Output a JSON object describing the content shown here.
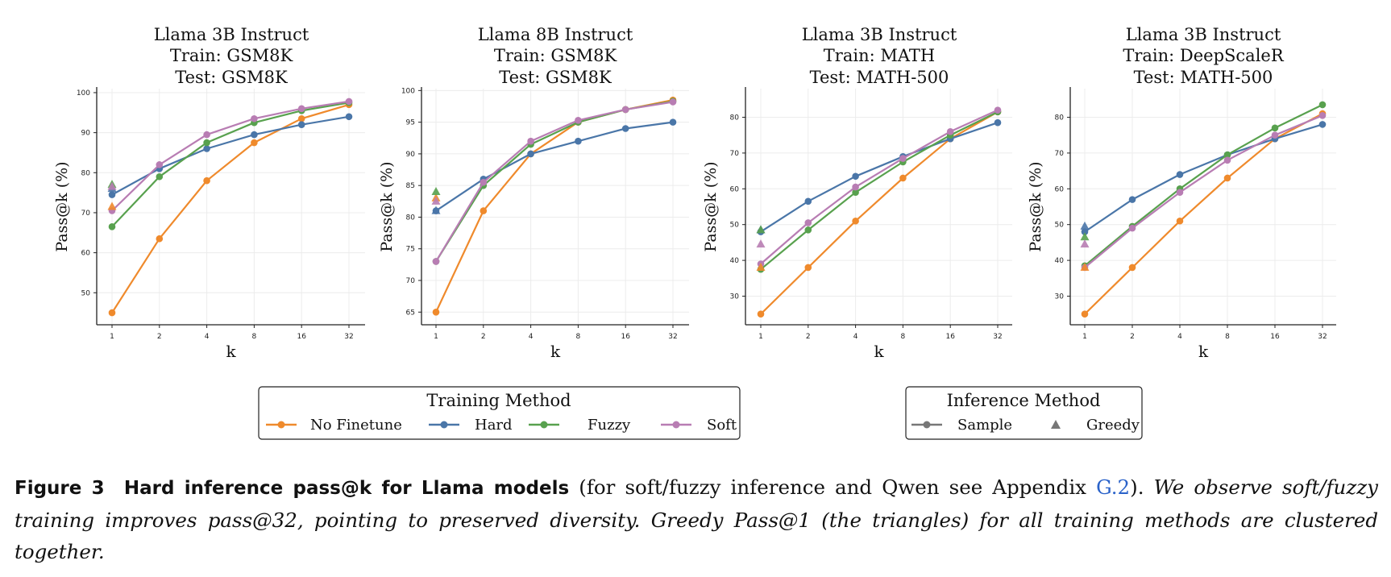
{
  "colors": {
    "No Finetune": "#ef8a2c",
    "Hard": "#4a76a8",
    "Fuzzy": "#58a14e",
    "Soft": "#b87db3"
  },
  "chart_data": [
    {
      "type": "line",
      "title": [
        "Llama 3B Instruct",
        "Train: GSM8K",
        "Test: GSM8K"
      ],
      "xlabel": "k",
      "ylabel": "Pass@k (%)",
      "x": [
        "1",
        "2",
        "4",
        "8",
        "16",
        "32"
      ],
      "ylim": [
        42,
        101
      ],
      "yticks": [
        50,
        60,
        70,
        80,
        90,
        100
      ],
      "series": [
        {
          "name": "No Finetune",
          "values": [
            45.0,
            63.5,
            78.0,
            87.5,
            93.5,
            97.0
          ]
        },
        {
          "name": "Hard",
          "values": [
            74.5,
            81.0,
            86.0,
            89.5,
            92.0,
            94.0
          ]
        },
        {
          "name": "Fuzzy",
          "values": [
            66.5,
            79.0,
            87.5,
            92.5,
            95.5,
            97.5
          ]
        },
        {
          "name": "Soft",
          "values": [
            70.5,
            82.0,
            89.5,
            93.5,
            96.0,
            97.8
          ]
        }
      ],
      "greedy": [
        {
          "name": "No Finetune",
          "value": 71.5
        },
        {
          "name": "Hard",
          "value": 76.0
        },
        {
          "name": "Fuzzy",
          "value": 77.0
        },
        {
          "name": "Soft",
          "value": 76.5
        }
      ]
    },
    {
      "type": "line",
      "title": [
        "Llama 8B Instruct",
        "Train: GSM8K",
        "Test: GSM8K"
      ],
      "xlabel": "k",
      "ylabel": "Pass@k (%)",
      "x": [
        "1",
        "2",
        "4",
        "8",
        "16",
        "32"
      ],
      "ylim": [
        63,
        100.3
      ],
      "yticks": [
        65,
        70,
        75,
        80,
        85,
        90,
        95,
        100
      ],
      "series": [
        {
          "name": "No Finetune",
          "values": [
            65.0,
            81.0,
            90.0,
            95.0,
            97.0,
            98.5
          ]
        },
        {
          "name": "Hard",
          "values": [
            81.0,
            86.0,
            90.0,
            92.0,
            94.0,
            95.0
          ]
        },
        {
          "name": "Fuzzy",
          "values": [
            73.0,
            85.0,
            91.5,
            95.0,
            97.0,
            98.3
          ]
        },
        {
          "name": "Soft",
          "values": [
            73.0,
            85.5,
            92.0,
            95.3,
            97.0,
            98.2
          ]
        }
      ],
      "greedy": [
        {
          "name": "No Finetune",
          "value": 83.0
        },
        {
          "name": "Hard",
          "value": 81.0
        },
        {
          "name": "Fuzzy",
          "value": 84.0
        },
        {
          "name": "Soft",
          "value": 82.5
        }
      ]
    },
    {
      "type": "line",
      "title": [
        "Llama 3B Instruct",
        "Train: MATH",
        "Test: MATH-500"
      ],
      "xlabel": "k",
      "ylabel": "Pass@k (%)",
      "x": [
        "1",
        "2",
        "4",
        "8",
        "16",
        "32"
      ],
      "ylim": [
        22,
        88
      ],
      "yticks": [
        30,
        40,
        50,
        60,
        70,
        80
      ],
      "series": [
        {
          "name": "No Finetune",
          "values": [
            25.0,
            38.0,
            51.0,
            63.0,
            74.0,
            81.5
          ]
        },
        {
          "name": "Hard",
          "values": [
            48.0,
            56.5,
            63.5,
            69.0,
            74.0,
            78.5
          ]
        },
        {
          "name": "Fuzzy",
          "values": [
            37.5,
            48.5,
            59.0,
            67.5,
            75.0,
            81.5
          ]
        },
        {
          "name": "Soft",
          "values": [
            39.0,
            50.5,
            60.5,
            68.5,
            76.0,
            82.0
          ]
        }
      ],
      "greedy": [
        {
          "name": "No Finetune",
          "value": 38.0
        },
        {
          "name": "Hard",
          "value": 48.5
        },
        {
          "name": "Fuzzy",
          "value": 48.5
        },
        {
          "name": "Soft",
          "value": 44.5
        }
      ]
    },
    {
      "type": "line",
      "title": [
        "Llama 3B Instruct",
        "Train: DeepScaleR",
        "Test: MATH-500"
      ],
      "xlabel": "k",
      "ylabel": "Pass@k (%)",
      "x": [
        "1",
        "2",
        "4",
        "8",
        "16",
        "32"
      ],
      "ylim": [
        22,
        88
      ],
      "yticks": [
        30,
        40,
        50,
        60,
        70,
        80
      ],
      "series": [
        {
          "name": "No Finetune",
          "values": [
            25.0,
            38.0,
            51.0,
            63.0,
            74.0,
            81.0
          ]
        },
        {
          "name": "Hard",
          "values": [
            48.0,
            57.0,
            64.0,
            69.5,
            74.0,
            78.0
          ]
        },
        {
          "name": "Fuzzy",
          "values": [
            38.5,
            49.5,
            60.0,
            69.5,
            77.0,
            83.5
          ]
        },
        {
          "name": "Soft",
          "values": [
            38.0,
            49.0,
            59.0,
            68.0,
            75.0,
            80.5
          ]
        }
      ],
      "greedy": [
        {
          "name": "No Finetune",
          "value": 38.0
        },
        {
          "name": "Hard",
          "value": 49.5
        },
        {
          "name": "Fuzzy",
          "value": 46.5
        },
        {
          "name": "Soft",
          "value": 44.5
        }
      ]
    }
  ],
  "legend_training": {
    "title": "Training Method",
    "items": [
      "No Finetune",
      "Hard",
      "Fuzzy",
      "Soft"
    ]
  },
  "legend_inference": {
    "title": "Inference Method",
    "items": [
      "Sample",
      "Greedy"
    ]
  },
  "caption": {
    "label": "Figure 3",
    "title": "Hard inference pass@k for Llama models",
    "text1": " (for soft/fuzzy inference and Qwen see Appendix ",
    "ref": "G.2",
    "text2": "). ",
    "italic": "We observe soft/fuzzy training improves pass@32, pointing to preserved diversity. Greedy Pass@1 (the triangles) for all training methods are clustered together."
  }
}
